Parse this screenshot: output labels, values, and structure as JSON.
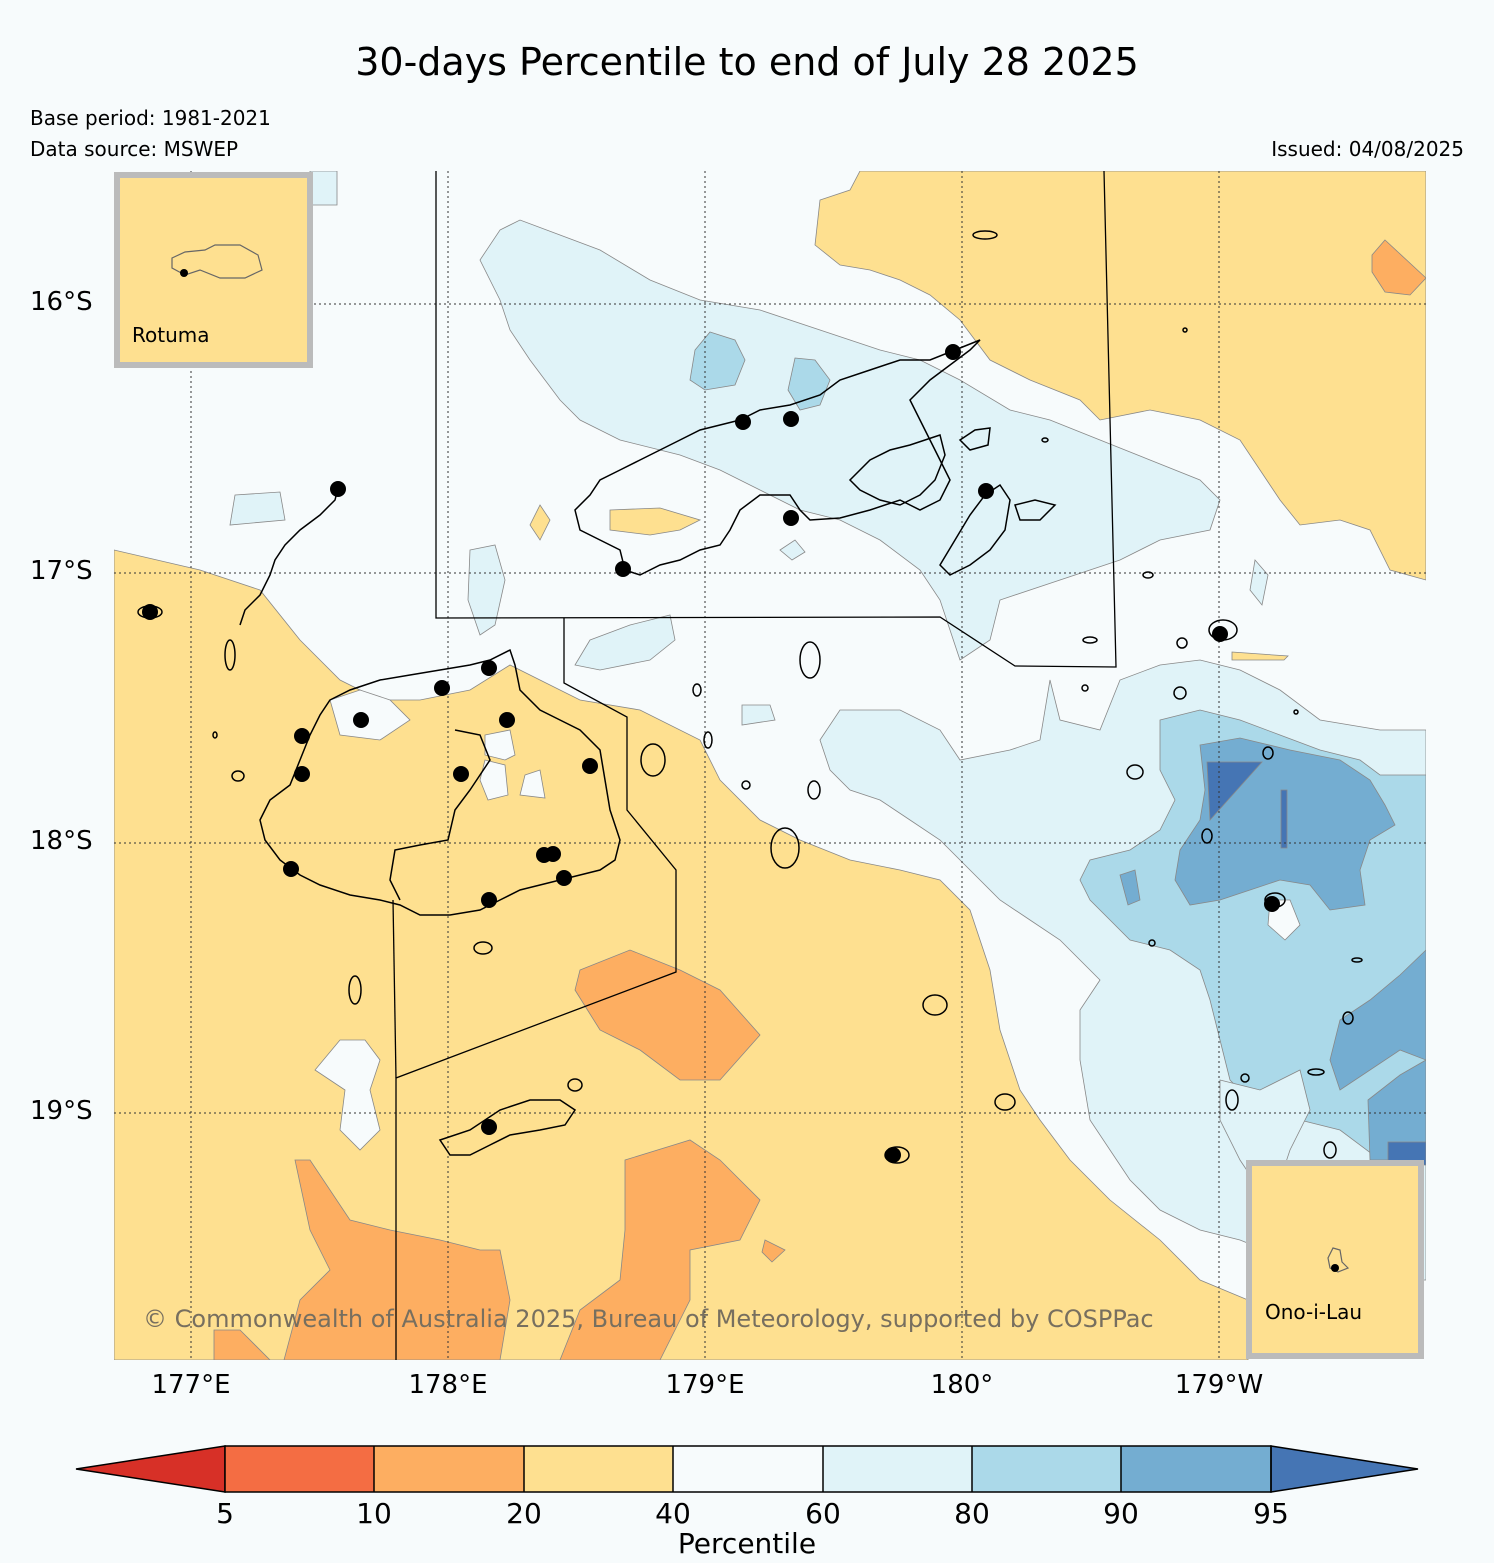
{
  "header": {
    "title": "30-days Percentile to end of July 28 2025",
    "base_period": "Base period: 1981-2021",
    "data_source": "Data source: MSWEP",
    "issued": "Issued: 04/08/2025"
  },
  "map": {
    "lat_labels": [
      "16°S",
      "17°S",
      "18°S",
      "19°S"
    ],
    "lon_labels": [
      "177°E",
      "178°E",
      "179°E",
      "180°",
      "179°W"
    ],
    "copyright": "© Commonwealth of Australia 2025, Bureau of Meteorology, supported by COSPPac",
    "insets": [
      {
        "label": "Rotuma"
      },
      {
        "label": "Ono-i-Lau"
      }
    ]
  },
  "colorbar": {
    "label": "Percentile",
    "ticks": [
      "5",
      "10",
      "20",
      "40",
      "60",
      "80",
      "90",
      "95"
    ],
    "colors": [
      "#d73027",
      "#f46d43",
      "#fdae61",
      "#fee090",
      "#f7fbfc",
      "#e0f3f8",
      "#abd9e9",
      "#74add1",
      "#4575b4"
    ]
  }
}
